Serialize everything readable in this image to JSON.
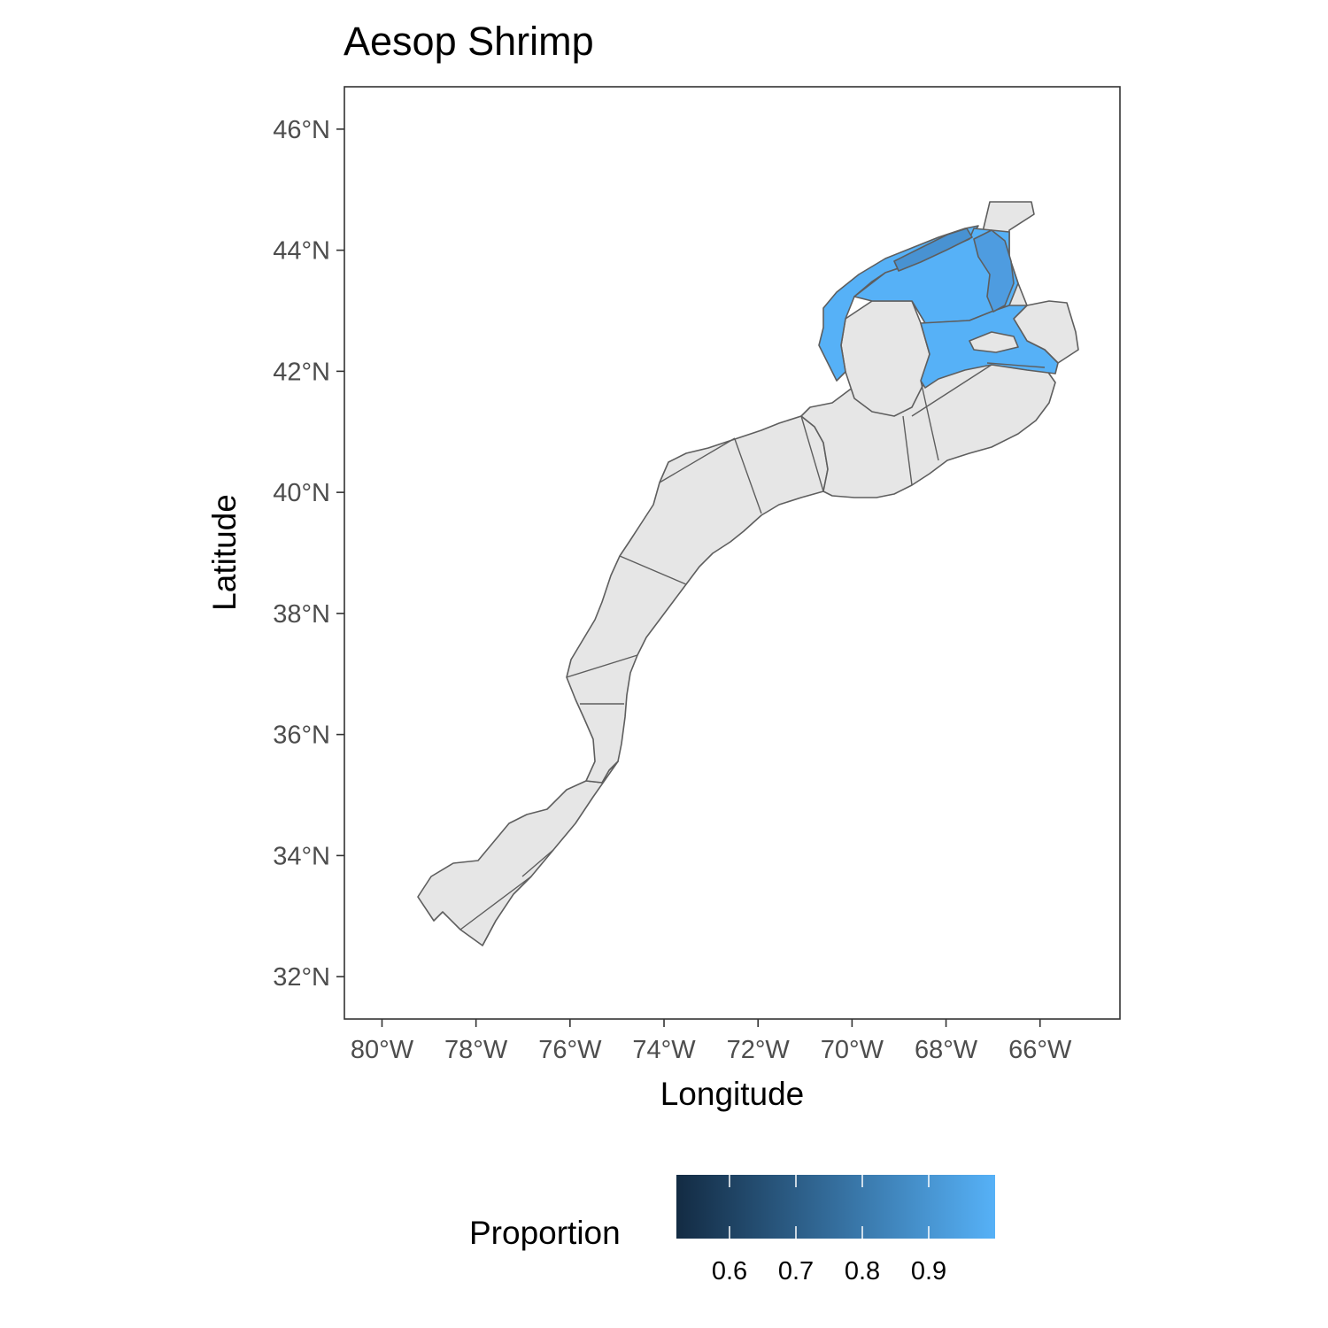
{
  "title": "Aesop Shrimp",
  "x_axis": {
    "label": "Longitude",
    "ticks": [
      {
        "value": -80,
        "label": "80°W"
      },
      {
        "value": -78,
        "label": "78°W"
      },
      {
        "value": -76,
        "label": "76°W"
      },
      {
        "value": -74,
        "label": "74°W"
      },
      {
        "value": -72,
        "label": "72°W"
      },
      {
        "value": -70,
        "label": "70°W"
      },
      {
        "value": -68,
        "label": "68°W"
      },
      {
        "value": -66,
        "label": "66°W"
      }
    ]
  },
  "y_axis": {
    "label": "Latitude",
    "ticks": [
      {
        "value": 32,
        "label": "32°N"
      },
      {
        "value": 34,
        "label": "34°N"
      },
      {
        "value": 36,
        "label": "36°N"
      },
      {
        "value": 38,
        "label": "38°N"
      },
      {
        "value": 40,
        "label": "40°N"
      },
      {
        "value": 42,
        "label": "42°N"
      },
      {
        "value": 44,
        "label": "44°N"
      },
      {
        "value": 46,
        "label": "46°N"
      }
    ]
  },
  "legend": {
    "title": "Proportion",
    "position": "bottom",
    "range": [
      0.52,
      1.0
    ],
    "low_color": "#132b43",
    "high_color": "#56b1f7",
    "ticks": [
      {
        "value": 0.6,
        "label": "0.6"
      },
      {
        "value": 0.7,
        "label": "0.7"
      },
      {
        "value": 0.8,
        "label": "0.8"
      },
      {
        "value": 0.9,
        "label": "0.9"
      }
    ]
  },
  "colors": {
    "no_data_fill": "#e6e6e6",
    "border": "#5e5e5e",
    "panel_border": "#333333"
  },
  "chart_data": {
    "type": "choropleth map",
    "region": "Northeast US continental shelf survey strata",
    "xlim": [
      -80.8,
      -64.3
    ],
    "ylim": [
      31.3,
      46.7
    ],
    "grid": false,
    "legend_position": "bottom",
    "highlighted_strata": [
      {
        "area": "Gulf of Maine – western coastal band",
        "proportion": 1.0
      },
      {
        "area": "Gulf of Maine – central basin",
        "proportion": 1.0
      },
      {
        "area": "Gulf of Maine – southern basin (north of Georges Bank)",
        "proportion": 1.0
      },
      {
        "area": "Gulf of Maine – northeastern inshore strip",
        "proportion": 0.83
      },
      {
        "area": "Gulf of Maine – eastern (Jordan Basin) stratum",
        "proportion": 0.87
      }
    ],
    "unhighlighted_fill": "no data / absent"
  }
}
